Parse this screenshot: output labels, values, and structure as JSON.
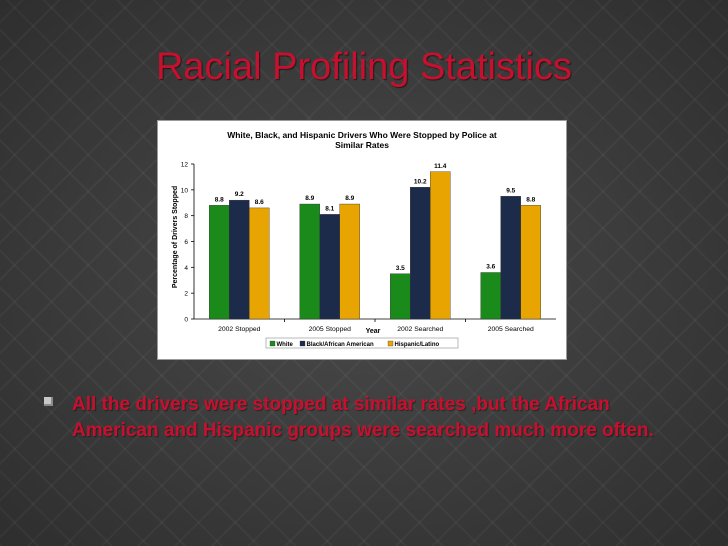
{
  "slide": {
    "title": "Racial Profiling Statistics",
    "bullet": "All the drivers were stopped at similar rates ,but the African American and Hispanic groups were searched much more often."
  },
  "chart_data": {
    "type": "bar",
    "title": "White, Black, and Hispanic Drivers Who Were Stopped by Police at Similar Rates",
    "title_lines": [
      "White, Black, and Hispanic Drivers Who Were Stopped by Police at",
      "Similar Rates"
    ],
    "xlabel": "Year",
    "ylabel": "Percentage of Drivers Stopped",
    "ylim": [
      0,
      12
    ],
    "yticks": [
      0,
      2,
      4,
      6,
      8,
      10,
      12
    ],
    "grid": false,
    "legend_position": "bottom",
    "categories": [
      "2002 Stopped",
      "2005 Stopped",
      "2002 Searched",
      "2005 Searched"
    ],
    "series": [
      {
        "name": "White",
        "color": "#1a8a1a",
        "values": [
          8.8,
          8.9,
          3.5,
          3.6
        ]
      },
      {
        "name": "Black/African American",
        "color": "#1c2b4a",
        "values": [
          9.2,
          8.1,
          10.2,
          9.5
        ]
      },
      {
        "name": "Hispanic/Latino",
        "color": "#e8a400",
        "values": [
          8.6,
          8.9,
          11.4,
          8.8
        ]
      }
    ]
  }
}
